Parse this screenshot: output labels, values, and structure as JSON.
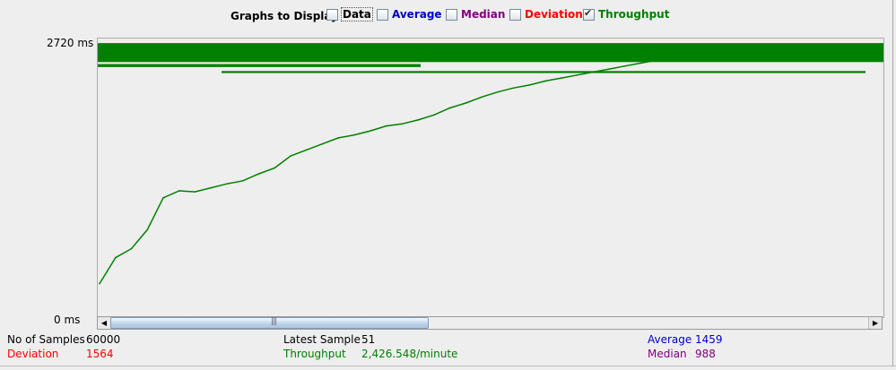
{
  "legend": {
    "title": "Graphs to Display",
    "items": [
      {
        "label": "Data",
        "checked": false,
        "color": "#000000"
      },
      {
        "label": "Average",
        "checked": false,
        "color": "#0000cc"
      },
      {
        "label": "Median",
        "checked": false,
        "color": "#800080"
      },
      {
        "label": "Deviation",
        "checked": false,
        "color": "#ff0000"
      },
      {
        "label": "Throughput",
        "checked": true,
        "color": "#008000"
      }
    ]
  },
  "axis": {
    "y_max_label": "2720  ms",
    "y_min_label": "0  ms"
  },
  "chart_data": {
    "type": "line",
    "ylim": [
      0,
      2720
    ],
    "yunit": "ms",
    "series": [
      {
        "name": "Throughput",
        "color": "#008000",
        "values": [
          300,
          560,
          650,
          840,
          1160,
          1230,
          1220,
          1260,
          1300,
          1330,
          1400,
          1460,
          1580,
          1640,
          1700,
          1760,
          1790,
          1830,
          1880,
          1900,
          1940,
          1990,
          2060,
          2110,
          2170,
          2220,
          2260,
          2290,
          2330,
          2360,
          2390,
          2420,
          2450,
          2480,
          2510,
          2540,
          2560,
          2580,
          2600,
          2620,
          2630,
          2640,
          2650,
          2660,
          2665,
          2670,
          2675,
          2680,
          2685,
          2690
        ]
      }
    ]
  },
  "scrollbar": {
    "thumb_fraction": 0.42
  },
  "stats": {
    "samples_label": "No of Samples",
    "samples_value": "60000",
    "latest_label": "Latest Sample",
    "latest_value": "51",
    "average_label": "Average",
    "average_value": "1459",
    "deviation_label": "Deviation",
    "deviation_value": "1564",
    "throughput_label": "Throughput",
    "throughput_value": "2,426.548/minute",
    "median_label": "Median",
    "median_value": "988"
  },
  "colors": {
    "average": "#0000cc",
    "median": "#800080",
    "deviation": "#ff0000",
    "throughput": "#008000"
  }
}
